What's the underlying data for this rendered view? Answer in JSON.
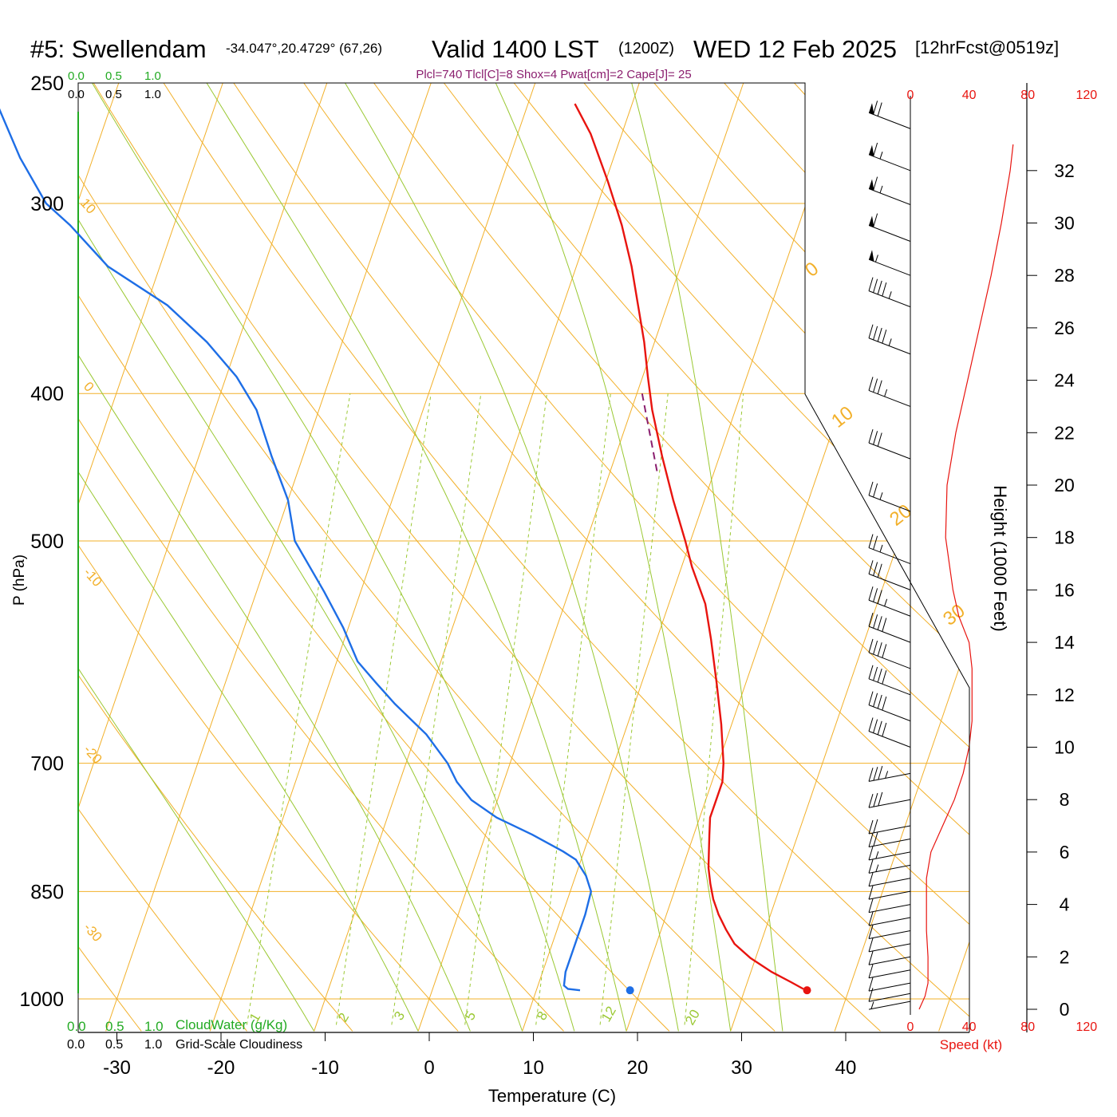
{
  "header": {
    "station": "#5: Swellendam",
    "coords": "-34.047°,20.4729° (67,26)",
    "valid": "Valid 1400 LST",
    "zulu": "(1200Z)",
    "date": "WED 12 Feb 2025",
    "forecast": "[12hrFcst@0519z]"
  },
  "indices": "Plcl=740 Tlcl[C]=8 Shox=4 Pwat[cm]=2 Cape[J]= 25",
  "colors": {
    "temperature": "#e8140f",
    "dewpoint": "#1e6ee6",
    "isotherm": "#f2b02a",
    "dry_adiabat": "#f2b02a",
    "moist_adiabat": "#9ac832",
    "mixing_ratio": "#9ac832",
    "parcel": "#8a1e6e",
    "cloud_water": "#22aa22",
    "wind_speed": "#e8140f"
  },
  "chart_data": {
    "type": "skew-t",
    "xlabel": "Temperature (C)",
    "ylabel": "P (hPa)",
    "right_axis_label": "Height (1000 Feet)",
    "x_ticks": [
      "-30",
      "-20",
      "-10",
      "0",
      "10",
      "20",
      "30",
      "40"
    ],
    "x_tick_values": [
      -30,
      -20,
      -10,
      0,
      10,
      20,
      30,
      40
    ],
    "pressure_ticks": [
      "250",
      "300",
      "400",
      "500",
      "700",
      "850",
      "1000"
    ],
    "pressure_values": [
      250,
      300,
      400,
      500,
      700,
      850,
      1000
    ],
    "height_ticks": [
      "0",
      "2",
      "4",
      "6",
      "8",
      "10",
      "12",
      "14",
      "16",
      "18",
      "20",
      "22",
      "24",
      "26",
      "28",
      "30",
      "32"
    ],
    "height_values": [
      0,
      2,
      4,
      6,
      8,
      10,
      12,
      14,
      16,
      18,
      20,
      22,
      24,
      26,
      28,
      30,
      32
    ],
    "isotherm_labels": [
      "10",
      "0",
      "-10",
      "-20",
      "-30",
      "0",
      "10",
      "20",
      "30"
    ],
    "mixing_ratio_labels": [
      "1",
      "2",
      "3",
      "5",
      "8",
      "12",
      "20"
    ],
    "mixing_ratio_values": [
      1,
      2,
      3,
      5,
      8,
      12,
      20
    ],
    "top_scale": {
      "cloudwater_ticks": [
        "0.0",
        "0.5",
        "1.0"
      ],
      "cloudiness_ticks": [
        "0.0",
        "0.5",
        "1.0"
      ]
    },
    "bottom_scale": {
      "cloudwater_ticks": [
        "0.0",
        "0.5",
        "1.0"
      ],
      "cloudwater_label": "CloudWater (g/Kg)",
      "cloudiness_ticks": [
        "0.0",
        "0.5",
        "1.0"
      ],
      "cloudiness_label": "Grid-Scale Cloudiness"
    },
    "speed_axis": {
      "ticks": [
        "0",
        "40",
        "80",
        "120"
      ],
      "values": [
        0,
        40,
        80,
        120
      ],
      "label": "Speed (kt)"
    },
    "temperature_profile": [
      [
        985,
        35.6
      ],
      [
        975,
        34.2
      ],
      [
        960,
        32.0
      ],
      [
        940,
        29.5
      ],
      [
        920,
        27.5
      ],
      [
        900,
        26.2
      ],
      [
        880,
        25.0
      ],
      [
        860,
        24.0
      ],
      [
        840,
        23.2
      ],
      [
        820,
        22.5
      ],
      [
        800,
        22.0
      ],
      [
        780,
        21.5
      ],
      [
        760,
        21.0
      ],
      [
        740,
        21.0
      ],
      [
        720,
        21.0
      ],
      [
        700,
        20.5
      ],
      [
        660,
        19.0
      ],
      [
        620,
        17.2
      ],
      [
        580,
        15.2
      ],
      [
        550,
        13.5
      ],
      [
        520,
        11.0
      ],
      [
        500,
        9.5
      ],
      [
        470,
        7.0
      ],
      [
        440,
        4.5
      ],
      [
        410,
        2.0
      ],
      [
        390,
        0.5
      ],
      [
        370,
        -1.0
      ],
      [
        350,
        -2.8
      ],
      [
        330,
        -4.7
      ],
      [
        310,
        -7.0
      ],
      [
        290,
        -9.8
      ],
      [
        270,
        -13.0
      ],
      [
        258,
        -15.5
      ]
    ],
    "dewpoint_profile": [
      [
        987,
        14.2
      ],
      [
        985,
        13.0
      ],
      [
        980,
        12.5
      ],
      [
        960,
        12.2
      ],
      [
        920,
        12.2
      ],
      [
        880,
        12.2
      ],
      [
        850,
        12.0
      ],
      [
        830,
        11.0
      ],
      [
        810,
        9.5
      ],
      [
        800,
        8.0
      ],
      [
        780,
        4.5
      ],
      [
        760,
        0.5
      ],
      [
        740,
        -2.5
      ],
      [
        720,
        -4.5
      ],
      [
        700,
        -6.0
      ],
      [
        670,
        -9.0
      ],
      [
        640,
        -13.0
      ],
      [
        620,
        -15.5
      ],
      [
        600,
        -18.0
      ],
      [
        570,
        -20.5
      ],
      [
        540,
        -23.5
      ],
      [
        500,
        -28.0
      ],
      [
        470,
        -30.0
      ],
      [
        440,
        -33.0
      ],
      [
        410,
        -36.0
      ],
      [
        390,
        -39.0
      ],
      [
        370,
        -43.0
      ],
      [
        350,
        -48.0
      ],
      [
        330,
        -55.0
      ],
      [
        310,
        -60.0
      ],
      [
        300,
        -63.0
      ],
      [
        280,
        -67.0
      ],
      [
        258,
        -71.0
      ]
    ],
    "surface_temperature": 36,
    "surface_dewpoint": 19,
    "surface_pressure": 987,
    "parcel_path": [
      [
        400,
        0.5
      ],
      [
        450,
        4.5
      ]
    ],
    "wind_speed_profile": [
      [
        0.0,
        6
      ],
      [
        0.5,
        10
      ],
      [
        1.0,
        12
      ],
      [
        2.0,
        12
      ],
      [
        3.0,
        11
      ],
      [
        4.0,
        11
      ],
      [
        5.0,
        11
      ],
      [
        6.0,
        14
      ],
      [
        7.0,
        22
      ],
      [
        8.0,
        30
      ],
      [
        9.0,
        36
      ],
      [
        10.0,
        40
      ],
      [
        11.0,
        42
      ],
      [
        12.0,
        42
      ],
      [
        13.0,
        42
      ],
      [
        14.0,
        40
      ],
      [
        15.0,
        33
      ],
      [
        16.0,
        29
      ],
      [
        18.0,
        24
      ],
      [
        20.0,
        25
      ],
      [
        22.0,
        31
      ],
      [
        24.0,
        39
      ],
      [
        26.0,
        47
      ],
      [
        28.0,
        55
      ],
      [
        30.0,
        62
      ],
      [
        32.0,
        68
      ],
      [
        33.0,
        70
      ]
    ],
    "wind_barbs": [
      {
        "height": 0.3,
        "speed": 5
      },
      {
        "height": 0.6,
        "speed": 10
      },
      {
        "height": 1.0,
        "speed": 10
      },
      {
        "height": 1.5,
        "speed": 10
      },
      {
        "height": 2.0,
        "speed": 10
      },
      {
        "height": 2.5,
        "speed": 10
      },
      {
        "height": 3.0,
        "speed": 10
      },
      {
        "height": 3.5,
        "speed": 10
      },
      {
        "height": 4.0,
        "speed": 10
      },
      {
        "height": 4.5,
        "speed": 10
      },
      {
        "height": 5.0,
        "speed": 10
      },
      {
        "height": 5.5,
        "speed": 15
      },
      {
        "height": 6.0,
        "speed": 15
      },
      {
        "height": 6.5,
        "speed": 20
      },
      {
        "height": 7.0,
        "speed": 20
      },
      {
        "height": 8.0,
        "speed": 30
      },
      {
        "height": 9.0,
        "speed": 35
      },
      {
        "height": 10.0,
        "speed": 40
      },
      {
        "height": 11.0,
        "speed": 40
      },
      {
        "height": 12.0,
        "speed": 40
      },
      {
        "height": 13.0,
        "speed": 40
      },
      {
        "height": 14.0,
        "speed": 40
      },
      {
        "height": 15.0,
        "speed": 35
      },
      {
        "height": 16.0,
        "speed": 30
      },
      {
        "height": 17.0,
        "speed": 25
      },
      {
        "height": 19.0,
        "speed": 25
      },
      {
        "height": 21.0,
        "speed": 30
      },
      {
        "height": 23.0,
        "speed": 35
      },
      {
        "height": 25.0,
        "speed": 45
      },
      {
        "height": 26.8,
        "speed": 45
      },
      {
        "height": 28.0,
        "speed": 55
      },
      {
        "height": 29.3,
        "speed": 60
      },
      {
        "height": 30.7,
        "speed": 65
      },
      {
        "height": 32.0,
        "speed": 65
      },
      {
        "height": 33.6,
        "speed": 70
      }
    ]
  }
}
